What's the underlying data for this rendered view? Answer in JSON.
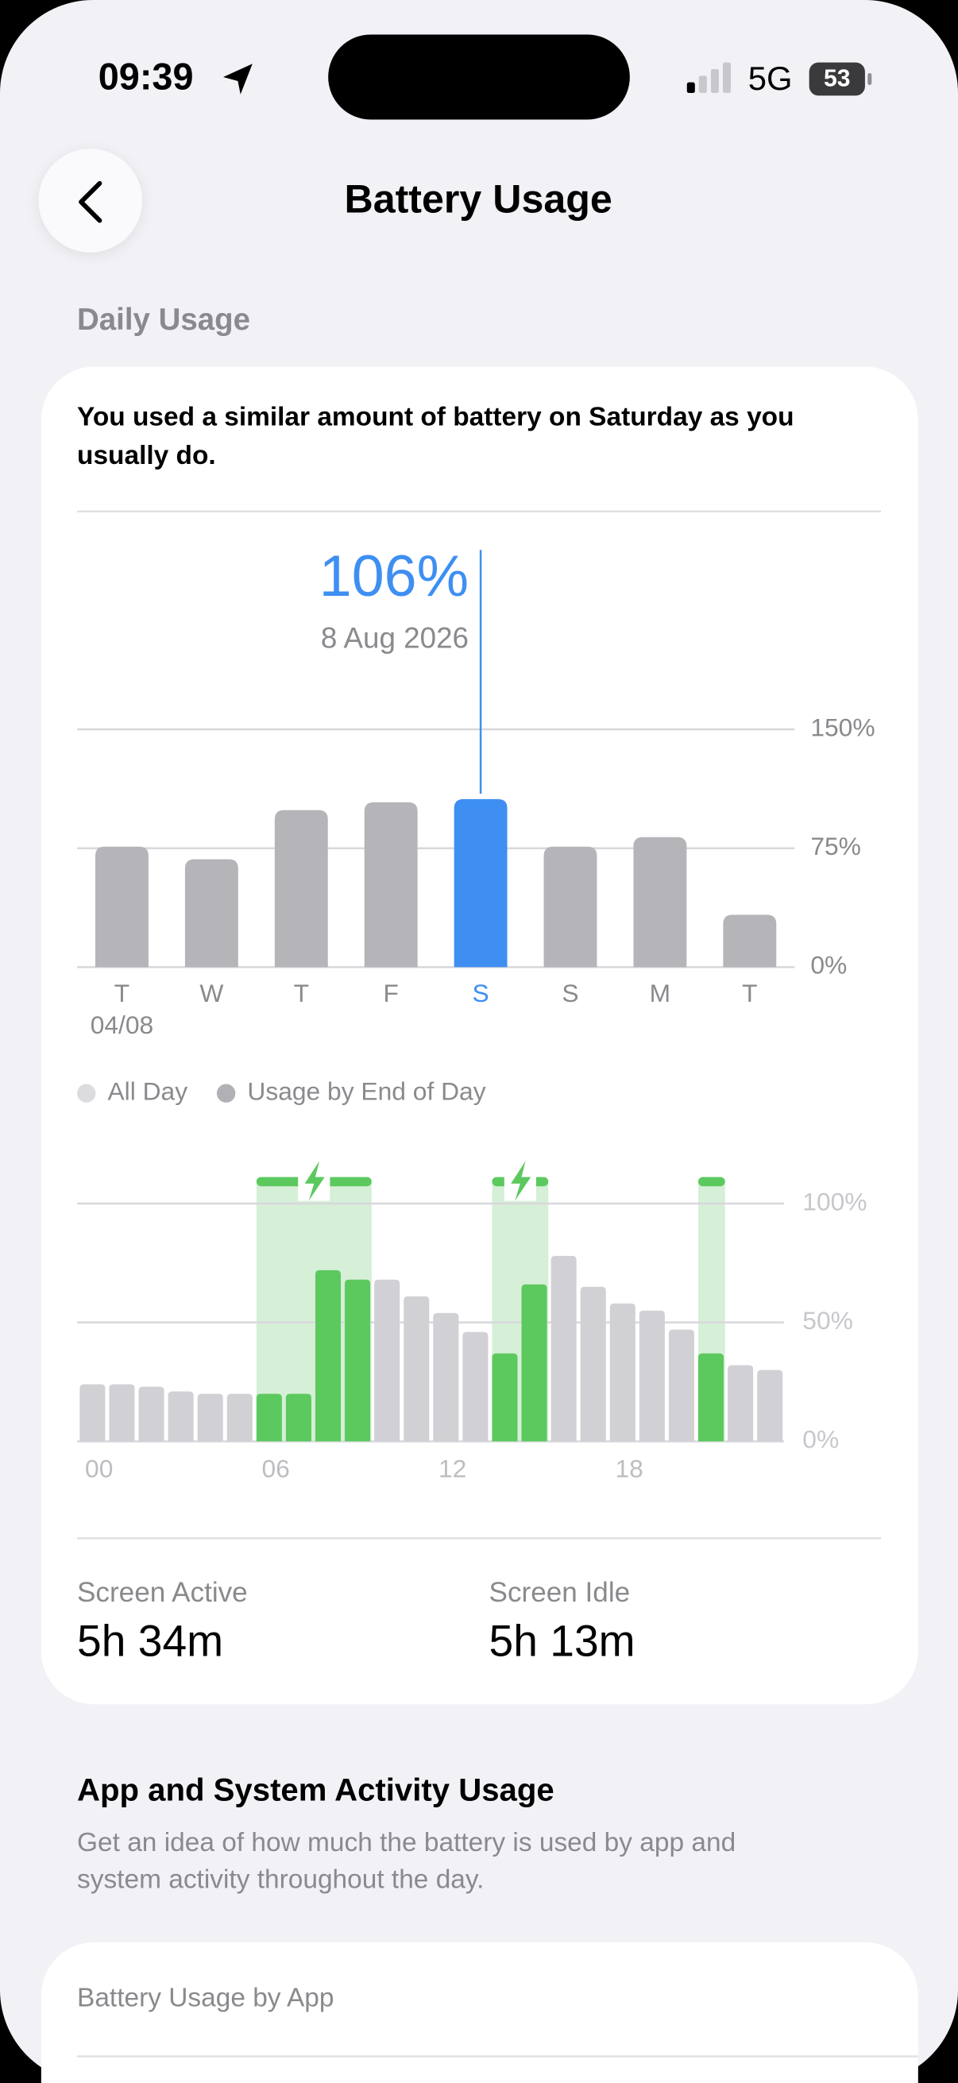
{
  "status_bar": {
    "time": "09:39",
    "network": "5G",
    "battery_level": "53"
  },
  "header": {
    "title": "Battery Usage"
  },
  "daily_usage": {
    "section_title": "Daily Usage",
    "summary": [
      "You used a similar amount of battery on Saturday as you",
      "usually do."
    ]
  },
  "chart_data": [
    {
      "type": "bar",
      "categories": [
        "T",
        "W",
        "T",
        "F",
        "S",
        "S",
        "M",
        "T"
      ],
      "first_date_label": "04/08",
      "values": [
        76,
        68,
        99,
        104,
        106,
        76,
        82,
        33
      ],
      "value_labels": [
        null,
        null,
        null,
        null,
        "106%",
        null,
        null,
        null
      ],
      "selected_index": 4,
      "selected_date": "8 Aug 2026",
      "color": "#b4b4b9",
      "highlight_color": "#3f8ff2",
      "ylim": [
        0,
        150
      ],
      "yticks": [
        {
          "value": 0,
          "label": "0%"
        },
        {
          "value": 75,
          "label": "75%"
        },
        {
          "value": 150,
          "label": "150%"
        }
      ],
      "grid": true
    },
    {
      "type": "bar",
      "legend": [
        {
          "name": "All Day",
          "color": "#dcdcdf"
        },
        {
          "name": "Usage by End of Day",
          "color": "#b0b0b5"
        }
      ],
      "categories": [
        "00",
        null,
        null,
        null,
        null,
        null,
        "06",
        null,
        null,
        null,
        null,
        null,
        "12",
        null,
        null,
        null,
        null,
        null,
        "18",
        null,
        null,
        null,
        null,
        null
      ],
      "values": [
        24,
        24,
        23,
        21,
        20,
        20,
        20,
        20,
        72,
        68,
        68,
        61,
        54,
        46,
        37,
        66,
        78,
        65,
        58,
        55,
        47,
        37,
        32,
        30
      ],
      "charging_periods": [
        {
          "start": 6,
          "end": 10
        },
        {
          "start": 14,
          "end": 16
        },
        {
          "start": 21,
          "end": 22
        }
      ],
      "color": "#d1d1d5",
      "charging_color": "#5cc95f",
      "charging_band_color": "#d6efd7",
      "ylim": [
        0,
        100
      ],
      "yticks": [
        {
          "value": 0,
          "label": "0%"
        },
        {
          "value": 50,
          "label": "50%"
        },
        {
          "value": 100,
          "label": "100%"
        }
      ],
      "grid": true
    }
  ],
  "stats": [
    {
      "label": "Screen Active",
      "value": "5h 34m"
    },
    {
      "label": "Screen Idle",
      "value": "5h 13m"
    }
  ],
  "activity": {
    "title": "App and System Activity Usage",
    "description": [
      "Get an idea of how much the battery is used by app and",
      "system activity throughout the day."
    ]
  },
  "app_usage": {
    "title": "Battery Usage by App"
  }
}
